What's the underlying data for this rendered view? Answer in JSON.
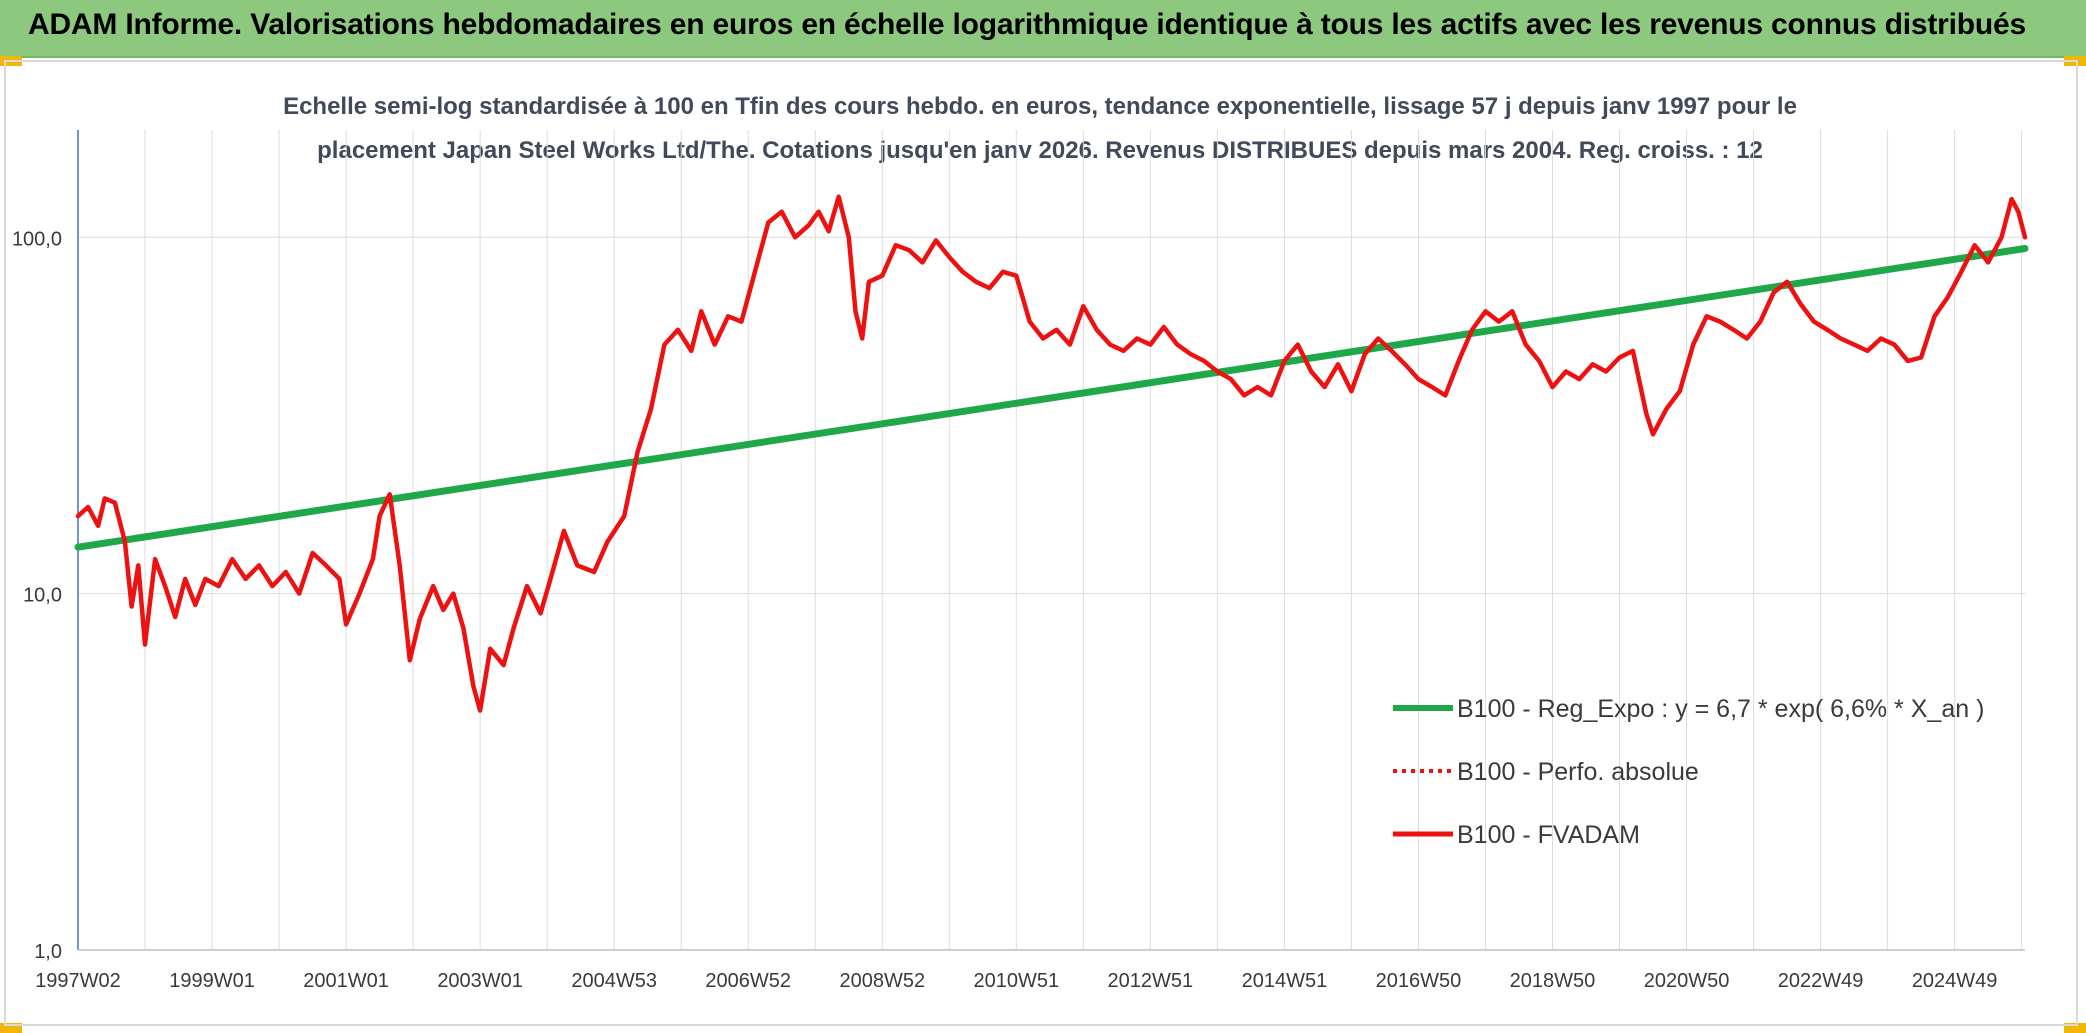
{
  "header": {
    "title": "ADAM Informe. Valorisations hebdomadaires en euros en échelle logarithmique identique à tous les actifs avec les revenus connus distribués"
  },
  "colors": {
    "header_bg": "#8cc97f",
    "corner_accent": "#f2b705",
    "regression": "#1fa84a",
    "fvadam": "#ee1111",
    "perfo": "#ee1111"
  },
  "chart_data": {
    "type": "line",
    "title_line1": "Echelle semi-log standardisée à 100 en Tfin des cours hebdo. en euros, tendance exponentielle, lissage 57 j depuis janv 1997 pour le",
    "title_line2": "placement Japan Steel Works Ltd/The. Cotations jusqu'en janv 2026. Revenus DISTRIBUES depuis mars 2004. Reg. croiss. : 12",
    "y_scale": "log",
    "ylim": [
      1,
      200
    ],
    "y_ticks": [
      {
        "value": 1,
        "label": "1,0"
      },
      {
        "value": 10,
        "label": "10,0"
      },
      {
        "value": 100,
        "label": "100,0"
      }
    ],
    "xlim": [
      1997.0,
      2026.05
    ],
    "x_ticks": [
      {
        "value": 1997.0,
        "label": "1997W02"
      },
      {
        "value": 1999.0,
        "label": "1999W01"
      },
      {
        "value": 2001.0,
        "label": "2001W01"
      },
      {
        "value": 2003.0,
        "label": "2003W01"
      },
      {
        "value": 2005.0,
        "label": "2004W53"
      },
      {
        "value": 2007.0,
        "label": "2006W52"
      },
      {
        "value": 2009.0,
        "label": "2008W52"
      },
      {
        "value": 2011.0,
        "label": "2010W51"
      },
      {
        "value": 2013.0,
        "label": "2012W51"
      },
      {
        "value": 2015.0,
        "label": "2014W51"
      },
      {
        "value": 2017.0,
        "label": "2016W50"
      },
      {
        "value": 2019.0,
        "label": "2018W50"
      },
      {
        "value": 2021.0,
        "label": "2020W50"
      },
      {
        "value": 2023.0,
        "label": "2022W49"
      },
      {
        "value": 2025.0,
        "label": "2024W49"
      }
    ],
    "grid": "vertical and horizontal",
    "legend_position": "lower-right",
    "series": [
      {
        "name": "B100 - Reg_Expo : y = 6,7 * exp( 6,6% *  X_an )",
        "style": "solid-thick",
        "color": "#1fa84a",
        "points": [
          [
            1997.0,
            13.5
          ],
          [
            2026.05,
            93.0
          ]
        ]
      },
      {
        "name": "B100 - Perfo. absolue",
        "style": "dotted",
        "color": "#ee1111",
        "points": []
      },
      {
        "name": "B100 - FVADAM",
        "style": "solid",
        "color": "#ee1111",
        "points": [
          [
            1997.0,
            16.5
          ],
          [
            1997.15,
            17.5
          ],
          [
            1997.3,
            15.5
          ],
          [
            1997.4,
            18.5
          ],
          [
            1997.55,
            18.0
          ],
          [
            1997.7,
            14.0
          ],
          [
            1997.8,
            9.2
          ],
          [
            1997.9,
            12.0
          ],
          [
            1998.0,
            7.2
          ],
          [
            1998.15,
            12.5
          ],
          [
            1998.3,
            10.5
          ],
          [
            1998.45,
            8.6
          ],
          [
            1998.6,
            11.0
          ],
          [
            1998.75,
            9.3
          ],
          [
            1998.9,
            11.0
          ],
          [
            1999.1,
            10.5
          ],
          [
            1999.3,
            12.5
          ],
          [
            1999.5,
            11.0
          ],
          [
            1999.7,
            12.0
          ],
          [
            1999.9,
            10.5
          ],
          [
            2000.1,
            11.5
          ],
          [
            2000.3,
            10.0
          ],
          [
            2000.5,
            13.0
          ],
          [
            2000.7,
            12.0
          ],
          [
            2000.9,
            11.0
          ],
          [
            2001.0,
            8.2
          ],
          [
            2001.2,
            10.0
          ],
          [
            2001.4,
            12.5
          ],
          [
            2001.5,
            16.5
          ],
          [
            2001.65,
            19.0
          ],
          [
            2001.8,
            12.0
          ],
          [
            2001.95,
            6.5
          ],
          [
            2002.1,
            8.5
          ],
          [
            2002.3,
            10.5
          ],
          [
            2002.45,
            9.0
          ],
          [
            2002.6,
            10.0
          ],
          [
            2002.75,
            8.0
          ],
          [
            2002.9,
            5.5
          ],
          [
            2003.0,
            4.7
          ],
          [
            2003.15,
            7.0
          ],
          [
            2003.35,
            6.3
          ],
          [
            2003.5,
            8.0
          ],
          [
            2003.7,
            10.5
          ],
          [
            2003.9,
            8.8
          ],
          [
            2004.05,
            11.0
          ],
          [
            2004.25,
            15.0
          ],
          [
            2004.45,
            12.0
          ],
          [
            2004.7,
            11.5
          ],
          [
            2004.9,
            14.0
          ],
          [
            2005.15,
            16.5
          ],
          [
            2005.35,
            25.0
          ],
          [
            2005.55,
            33.0
          ],
          [
            2005.75,
            50.0
          ],
          [
            2005.95,
            55.0
          ],
          [
            2006.15,
            48.0
          ],
          [
            2006.3,
            62.0
          ],
          [
            2006.5,
            50.0
          ],
          [
            2006.7,
            60.0
          ],
          [
            2006.9,
            58.0
          ],
          [
            2007.1,
            80.0
          ],
          [
            2007.3,
            110.0
          ],
          [
            2007.5,
            118.0
          ],
          [
            2007.7,
            100.0
          ],
          [
            2007.9,
            108.0
          ],
          [
            2008.05,
            118.0
          ],
          [
            2008.2,
            104.0
          ],
          [
            2008.35,
            130.0
          ],
          [
            2008.5,
            100.0
          ],
          [
            2008.6,
            62.0
          ],
          [
            2008.7,
            52.0
          ],
          [
            2008.8,
            75.0
          ],
          [
            2009.0,
            78.0
          ],
          [
            2009.2,
            95.0
          ],
          [
            2009.4,
            92.0
          ],
          [
            2009.6,
            85.0
          ],
          [
            2009.8,
            98.0
          ],
          [
            2010.0,
            88.0
          ],
          [
            2010.2,
            80.0
          ],
          [
            2010.4,
            75.0
          ],
          [
            2010.6,
            72.0
          ],
          [
            2010.8,
            80.0
          ],
          [
            2011.0,
            78.0
          ],
          [
            2011.2,
            58.0
          ],
          [
            2011.4,
            52.0
          ],
          [
            2011.6,
            55.0
          ],
          [
            2011.8,
            50.0
          ],
          [
            2012.0,
            64.0
          ],
          [
            2012.2,
            55.0
          ],
          [
            2012.4,
            50.0
          ],
          [
            2012.6,
            48.0
          ],
          [
            2012.8,
            52.0
          ],
          [
            2013.0,
            50.0
          ],
          [
            2013.2,
            56.0
          ],
          [
            2013.4,
            50.0
          ],
          [
            2013.6,
            47.0
          ],
          [
            2013.8,
            45.0
          ],
          [
            2014.0,
            42.0
          ],
          [
            2014.2,
            40.0
          ],
          [
            2014.4,
            36.0
          ],
          [
            2014.6,
            38.0
          ],
          [
            2014.8,
            36.0
          ],
          [
            2015.0,
            45.0
          ],
          [
            2015.2,
            50.0
          ],
          [
            2015.4,
            42.0
          ],
          [
            2015.6,
            38.0
          ],
          [
            2015.8,
            44.0
          ],
          [
            2016.0,
            37.0
          ],
          [
            2016.2,
            47.0
          ],
          [
            2016.4,
            52.0
          ],
          [
            2016.6,
            48.0
          ],
          [
            2016.8,
            44.0
          ],
          [
            2017.0,
            40.0
          ],
          [
            2017.2,
            38.0
          ],
          [
            2017.4,
            36.0
          ],
          [
            2017.6,
            45.0
          ],
          [
            2017.8,
            55.0
          ],
          [
            2018.0,
            62.0
          ],
          [
            2018.2,
            58.0
          ],
          [
            2018.4,
            62.0
          ],
          [
            2018.6,
            50.0
          ],
          [
            2018.8,
            45.0
          ],
          [
            2019.0,
            38.0
          ],
          [
            2019.2,
            42.0
          ],
          [
            2019.4,
            40.0
          ],
          [
            2019.6,
            44.0
          ],
          [
            2019.8,
            42.0
          ],
          [
            2020.0,
            46.0
          ],
          [
            2020.2,
            48.0
          ],
          [
            2020.4,
            32.0
          ],
          [
            2020.5,
            28.0
          ],
          [
            2020.7,
            33.0
          ],
          [
            2020.9,
            37.0
          ],
          [
            2021.1,
            50.0
          ],
          [
            2021.3,
            60.0
          ],
          [
            2021.5,
            58.0
          ],
          [
            2021.7,
            55.0
          ],
          [
            2021.9,
            52.0
          ],
          [
            2022.1,
            58.0
          ],
          [
            2022.3,
            70.0
          ],
          [
            2022.5,
            75.0
          ],
          [
            2022.7,
            65.0
          ],
          [
            2022.9,
            58.0
          ],
          [
            2023.1,
            55.0
          ],
          [
            2023.3,
            52.0
          ],
          [
            2023.5,
            50.0
          ],
          [
            2023.7,
            48.0
          ],
          [
            2023.9,
            52.0
          ],
          [
            2024.1,
            50.0
          ],
          [
            2024.3,
            45.0
          ],
          [
            2024.5,
            46.0
          ],
          [
            2024.7,
            60.0
          ],
          [
            2024.9,
            68.0
          ],
          [
            2025.1,
            80.0
          ],
          [
            2025.3,
            95.0
          ],
          [
            2025.5,
            85.0
          ],
          [
            2025.7,
            100.0
          ],
          [
            2025.85,
            128.0
          ],
          [
            2025.95,
            118.0
          ],
          [
            2026.05,
            100.0
          ]
        ]
      }
    ]
  }
}
